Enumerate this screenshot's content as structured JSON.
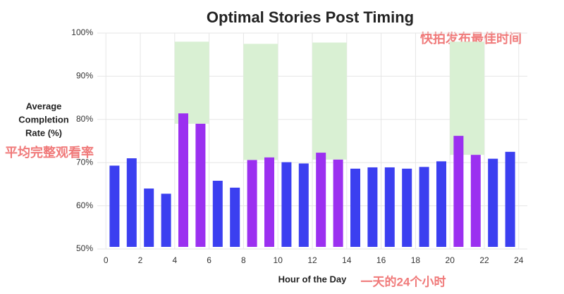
{
  "chart_data": {
    "type": "bar",
    "title": "Optimal Stories Post Timing",
    "ylabel": [
      "Average",
      "Completion",
      "Rate (%)"
    ],
    "xlabel": "Hour of the Day",
    "annotations": [
      "快拍发布最佳时间",
      "平均完整观看率",
      "一天的24个小时"
    ],
    "x": [
      0,
      1,
      2,
      3,
      4,
      5,
      6,
      7,
      8,
      9,
      10,
      11,
      12,
      13,
      14,
      15,
      16,
      17,
      18,
      19,
      20,
      21,
      22,
      23
    ],
    "values": [
      69.3,
      71,
      64,
      62.8,
      81.4,
      79,
      65.8,
      64.2,
      70.6,
      71.2,
      70.1,
      69.8,
      72.3,
      70.7,
      68.6,
      68.9,
      68.9,
      68.6,
      69,
      70.3,
      76.2,
      71.8,
      70.9,
      72.5
    ],
    "colors": [
      "#3b3ff0",
      "#3b3ff0",
      "#3b3ff0",
      "#3b3ff0",
      "#9b30f0",
      "#9b30f0",
      "#3b3ff0",
      "#3b3ff0",
      "#9b30f0",
      "#9b30f0",
      "#3b3ff0",
      "#3b3ff0",
      "#9b30f0",
      "#9b30f0",
      "#3b3ff0",
      "#3b3ff0",
      "#3b3ff0",
      "#3b3ff0",
      "#3b3ff0",
      "#3b3ff0",
      "#9b30f0",
      "#9b30f0",
      "#3b3ff0",
      "#3b3ff0"
    ],
    "highlights": [
      {
        "x": [
          4,
          6
        ],
        "top": 98
      },
      {
        "x": [
          8,
          10
        ],
        "top": 97.5
      },
      {
        "x": [
          12,
          14
        ],
        "top": 97.8
      },
      {
        "x": [
          20,
          22
        ],
        "top": 98
      }
    ],
    "highlight_color": "#d9f0d3",
    "xlim": [
      -0.5,
      24.5
    ],
    "xticks": [
      0,
      2,
      4,
      6,
      8,
      10,
      12,
      14,
      16,
      18,
      20,
      22,
      24
    ],
    "ylim": [
      50,
      100
    ],
    "yticks": [
      {
        "value": 50,
        "label": "50%"
      },
      {
        "value": 60,
        "label": "60%"
      },
      {
        "value": 70,
        "label": "70%"
      },
      {
        "value": 80,
        "label": "80%"
      },
      {
        "value": 90,
        "label": "90%"
      },
      {
        "value": 100,
        "label": "100%"
      }
    ],
    "grid": true
  }
}
